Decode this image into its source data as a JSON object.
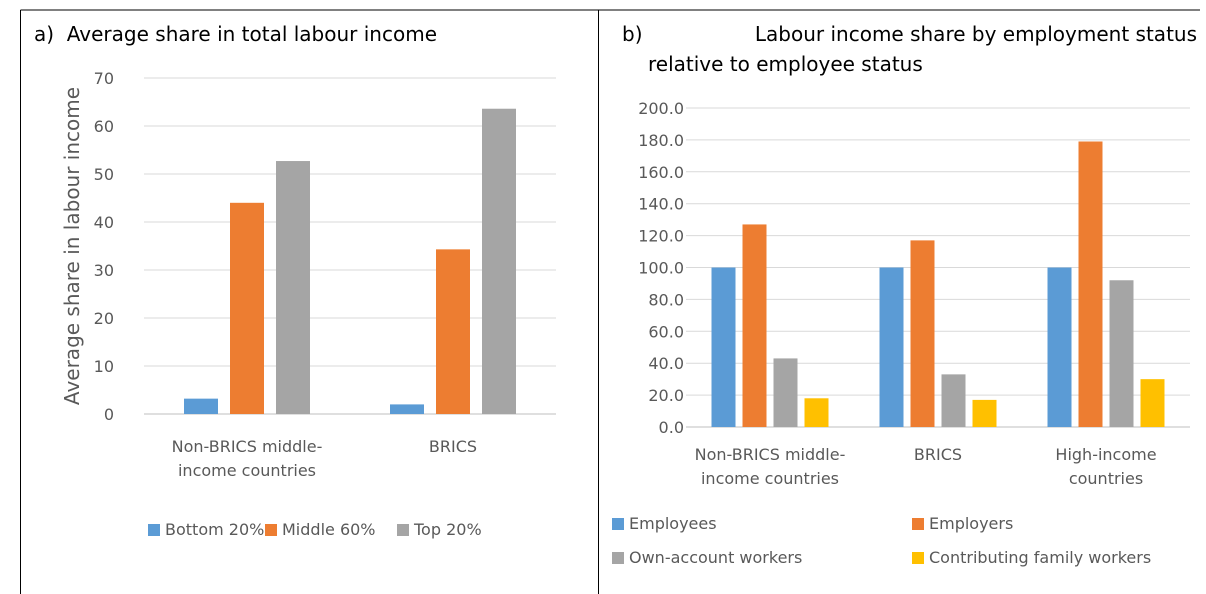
{
  "chart_data": [
    {
      "type": "bar",
      "panel_label": "a)",
      "title": "Average share in total labour income",
      "ylabel": "Average share in labour income",
      "xlabel": "",
      "ylim": [
        0,
        70
      ],
      "yticks": [
        "0",
        "10",
        "20",
        "30",
        "40",
        "50",
        "60",
        "70"
      ],
      "categories": [
        "Non-BRICS middle-income countries",
        "BRICS"
      ],
      "category_lines": [
        [
          "Non-BRICS middle-",
          "income countries"
        ],
        [
          "BRICS"
        ]
      ],
      "series": [
        {
          "name": "Bottom 20%",
          "color": "#5B9BD5",
          "values": [
            3.2,
            2.0
          ]
        },
        {
          "name": "Middle 60%",
          "color": "#ED7D31",
          "values": [
            44.0,
            34.3
          ]
        },
        {
          "name": "Top 20%",
          "color": "#A5A5A5",
          "values": [
            52.7,
            63.6
          ]
        }
      ],
      "grid": true,
      "legend": "bottom"
    },
    {
      "type": "bar",
      "panel_label": "b)",
      "title": "Labour income share by employment status relative to employee status",
      "title_lines": [
        "Labour income share by employment status",
        "relative to employee status"
      ],
      "xlabel": "",
      "ylabel": "",
      "ylim": [
        0,
        200
      ],
      "yticks": [
        "0.0",
        "20.0",
        "40.0",
        "60.0",
        "80.0",
        "100.0",
        "120.0",
        "140.0",
        "160.0",
        "180.0",
        "200.0"
      ],
      "categories": [
        "Non-BRICS middle-income countries",
        "BRICS",
        "High-income countries"
      ],
      "category_lines": [
        [
          "Non-BRICS middle-",
          "income countries"
        ],
        [
          "BRICS"
        ],
        [
          "High-income",
          "countries"
        ]
      ],
      "series": [
        {
          "name": "Employees",
          "color": "#5B9BD5",
          "values": [
            100,
            100,
            100
          ]
        },
        {
          "name": "Employers",
          "color": "#ED7D31",
          "values": [
            127,
            117,
            179
          ]
        },
        {
          "name": "Own-account workers",
          "color": "#A5A5A5",
          "values": [
            43,
            33,
            92
          ]
        },
        {
          "name": "Contributing family workers",
          "color": "#FFC000",
          "values": [
            18,
            17,
            30
          ]
        }
      ],
      "grid": true,
      "legend": "bottom"
    }
  ]
}
